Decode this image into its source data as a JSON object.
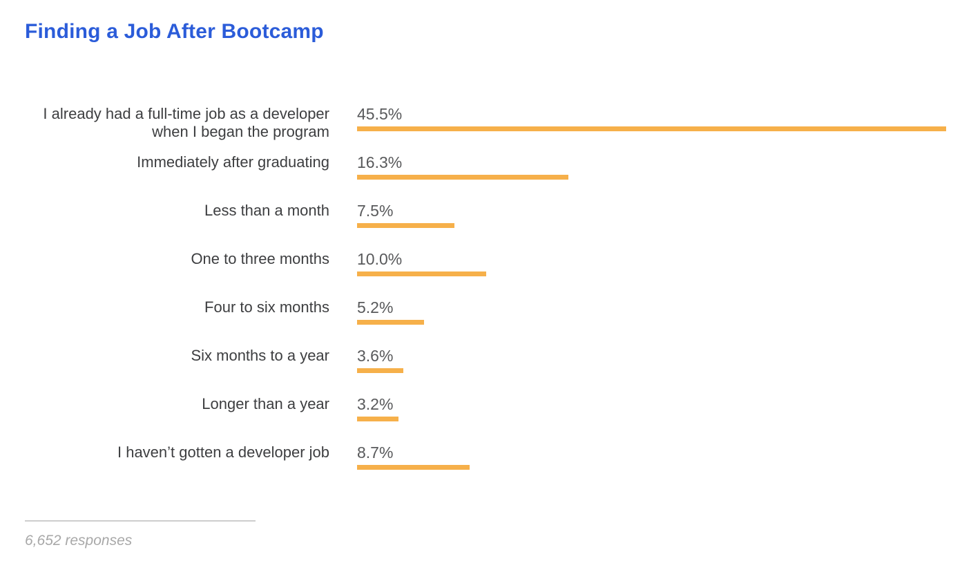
{
  "header": {
    "title": "Finding a Job After Bootcamp"
  },
  "chart_data": {
    "type": "bar",
    "orientation": "horizontal",
    "title": "Finding a Job After Bootcamp",
    "categories": [
      "I already had a full-time job as a developer when I began the program",
      "Immediately after graduating",
      "Less than a month",
      "One to three months",
      "Four to six months",
      "Six months to a year",
      "Longer than a year",
      "I haven’t gotten a developer job"
    ],
    "values": [
      45.5,
      16.3,
      7.5,
      10.0,
      5.2,
      3.6,
      3.2,
      8.7
    ],
    "value_labels": [
      "45.5%",
      "16.3%",
      "7.5%",
      "10.0%",
      "5.2%",
      "3.6%",
      "3.2%",
      "8.7%"
    ],
    "unit": "%",
    "xlim": [
      0,
      45.5
    ],
    "grid": false,
    "legend": false,
    "bar_color": "#f6b04a",
    "footnote": "6,652 responses"
  },
  "colors": {
    "title": "#2b5cd9",
    "category_label": "#3d3e40",
    "value_label": "#58595b",
    "bar": "#f6b04a",
    "divider": "#cdcdcd",
    "footnote": "#a8a8a8",
    "background": "#ffffff"
  },
  "footer": {
    "responses": "6,652 responses"
  }
}
